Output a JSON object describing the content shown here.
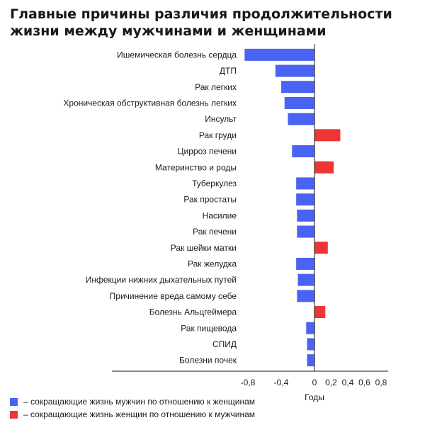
{
  "title": "Главные причины различия продолжительности жизни между мужчинами и женщинами",
  "chart_data": {
    "type": "bar",
    "orientation": "horizontal",
    "title": "Главные причины различия продолжительности жизни между мужчинами и женщинами",
    "xlabel": "Годы",
    "xlim": [
      -0.8,
      0.8
    ],
    "xticks": [
      -0.8,
      -0.4,
      0,
      0.2,
      0.4,
      0.6,
      0.8
    ],
    "xtick_labels": [
      "-0,8",
      "-0,4",
      "0",
      "0,2",
      "0,4",
      "0,6",
      "0,8"
    ],
    "categories": [
      "Ишемическая болезнь сердца",
      "ДТП",
      "Рак легких",
      "Хроническая обструктивная болезнь легких",
      "Инсульт",
      "Рак груди",
      "Цирроз печени",
      "Материнство и роды",
      "Туберкулез",
      "Рак простаты",
      "Насилие",
      "Рак печени",
      "Рак шейки матки",
      "Рак желудка",
      "Инфекции нижних дыхательных путей",
      "Причинение вреда самому себе",
      "Болезнь Альцгеймера",
      "Рак пищевода",
      "СПИД",
      "Болезни почек"
    ],
    "values": [
      -0.84,
      -0.47,
      -0.4,
      -0.36,
      -0.32,
      0.31,
      -0.27,
      0.23,
      -0.22,
      -0.22,
      -0.21,
      -0.21,
      0.16,
      -0.22,
      -0.2,
      -0.21,
      0.13,
      -0.1,
      -0.09,
      -0.09
    ],
    "colors": {
      "negative": "#4a63f2",
      "positive": "#ee3535"
    },
    "legend": [
      {
        "color": "#4a63f2",
        "label": "– сокращающие жизнь мужчин по отношению к женщинам"
      },
      {
        "color": "#ee3535",
        "label": "– сокращающие жизнь женщин по отношению к мужчинам"
      }
    ],
    "legend_position": "bottom-left",
    "grid": false
  }
}
